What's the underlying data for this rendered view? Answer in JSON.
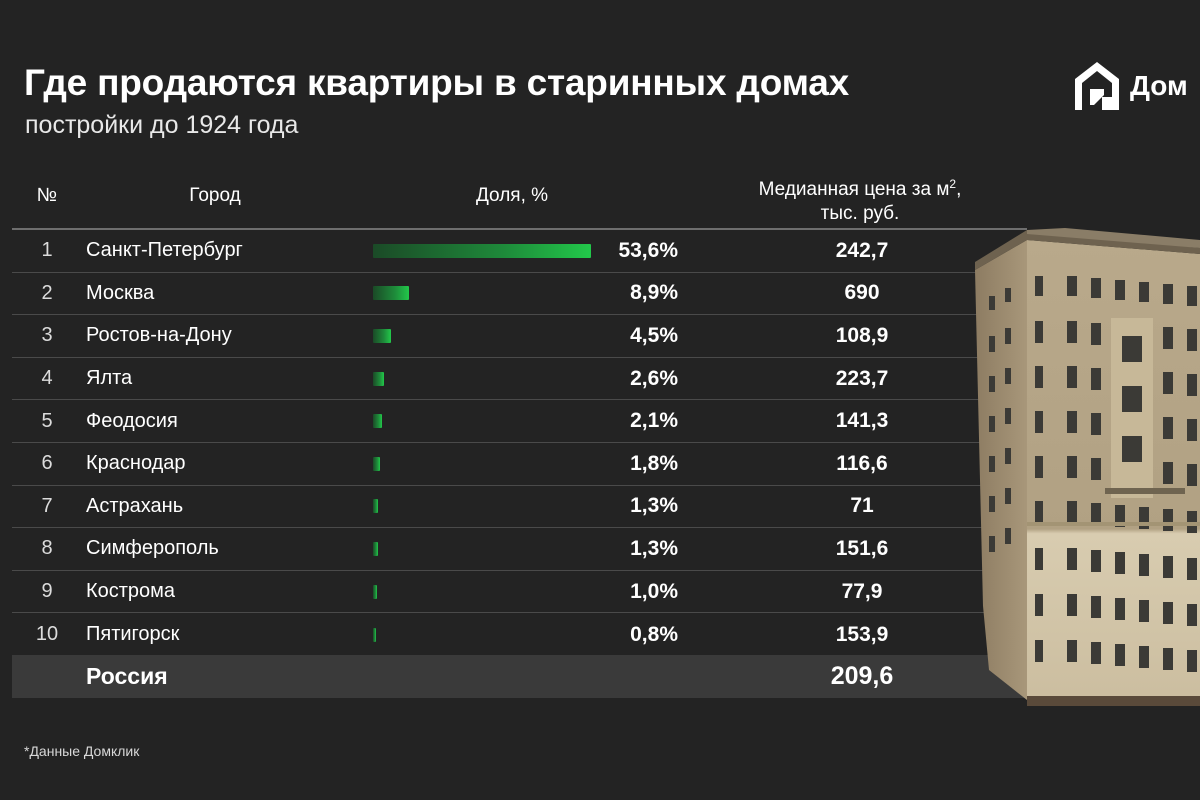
{
  "title": "Где продаются квартиры в старинных домах",
  "subtitle": "постройки до 1924 года",
  "brand": {
    "name": "Дом",
    "accent": "#22c84a"
  },
  "headers": {
    "num": "№",
    "city": "Город",
    "share": "Доля, %",
    "price_line1": "Медианная цена за м",
    "price_sup": "2",
    "price_suffix": ",",
    "price_line2": "тыс. руб."
  },
  "chart_data": {
    "type": "table",
    "columns": [
      "№",
      "Город",
      "Доля, %",
      "Медианная цена за м², тыс. руб."
    ],
    "rows": [
      {
        "num": "1",
        "city": "Санкт-Петербург",
        "share": 53.6,
        "share_label": "53,6%",
        "price": "242,7"
      },
      {
        "num": "2",
        "city": "Москва",
        "share": 8.9,
        "share_label": "8,9%",
        "price": "690"
      },
      {
        "num": "3",
        "city": "Ростов-на-Дону",
        "share": 4.5,
        "share_label": "4,5%",
        "price": "108,9"
      },
      {
        "num": "4",
        "city": "Ялта",
        "share": 2.6,
        "share_label": "2,6%",
        "price": "223,7"
      },
      {
        "num": "5",
        "city": "Феодосия",
        "share": 2.1,
        "share_label": "2,1%",
        "price": "141,3"
      },
      {
        "num": "6",
        "city": "Краснодар",
        "share": 1.8,
        "share_label": "1,8%",
        "price": "116,6"
      },
      {
        "num": "7",
        "city": "Астрахань",
        "share": 1.3,
        "share_label": "1,3%",
        "price": "71"
      },
      {
        "num": "8",
        "city": "Симферополь",
        "share": 1.3,
        "share_label": "1,3%",
        "price": "151,6"
      },
      {
        "num": "9",
        "city": "Кострома",
        "share": 1.0,
        "share_label": "1,0%",
        "price": "77,9"
      },
      {
        "num": "10",
        "city": "Пятигорск",
        "share": 0.8,
        "share_label": "0,8%",
        "price": "153,9"
      }
    ],
    "total": {
      "label": "Россия",
      "price": "209,6"
    }
  },
  "footnote": "*Данные Домклик",
  "illustration": "old-building-icon"
}
